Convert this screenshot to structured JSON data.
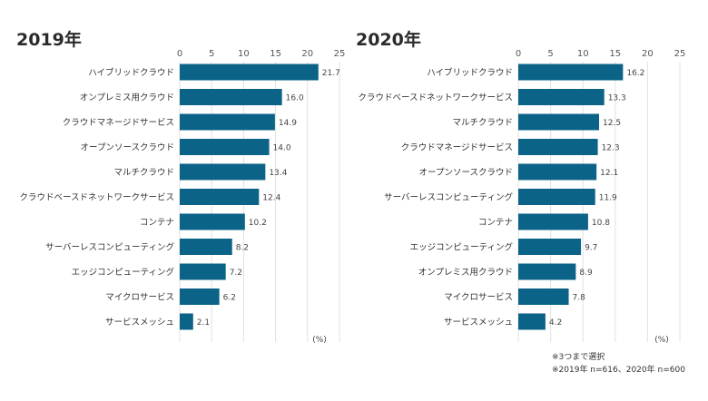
{
  "chart_data": [
    {
      "type": "bar",
      "orientation": "horizontal",
      "title": "2019年",
      "categories": [
        "ハイブリッドクラウド",
        "オンプレミス用クラウド",
        "クラウドマネージドサービス",
        "オープンソースクラウド",
        "マルチクラウド",
        "クラウドベースドネットワークサービス",
        "コンテナ",
        "サーバーレスコンピューティング",
        "エッジコンピューティング",
        "マイクロサービス",
        "サービスメッシュ"
      ],
      "values": [
        21.7,
        16.0,
        14.9,
        14.0,
        13.4,
        12.4,
        10.2,
        8.2,
        7.2,
        6.2,
        2.1
      ],
      "value_labels": [
        "21.7",
        "16.0",
        "14.9",
        "14.0",
        "13.4",
        "12.4",
        "10.2",
        "8.2",
        "7.2",
        "6.2",
        "2.1"
      ],
      "xticks": [
        "0",
        "5",
        "10",
        "15",
        "20",
        "25"
      ],
      "xlim": [
        0,
        25
      ],
      "unit": "(%)",
      "bar_color": "#0b6388",
      "grid": true
    },
    {
      "type": "bar",
      "orientation": "horizontal",
      "title": "2020年",
      "categories": [
        "ハイブリッドクラウド",
        "クラウドベースドネットワークサービス",
        "マルチクラウド",
        "クラウドマネージドサービス",
        "オープンソースクラウド",
        "サーバーレスコンピューティング",
        "コンテナ",
        "エッジコンピューティング",
        "オンプレミス用クラウド",
        "マイクロサービス",
        "サービスメッシュ"
      ],
      "values": [
        16.2,
        13.3,
        12.5,
        12.3,
        12.1,
        11.9,
        10.8,
        9.7,
        8.9,
        7.8,
        4.2
      ],
      "value_labels": [
        "16.2",
        "13.3",
        "12.5",
        "12.3",
        "12.1",
        "11.9",
        "10.8",
        "9.7",
        "8.9",
        "7.8",
        "4.2"
      ],
      "xticks": [
        "0",
        "5",
        "10",
        "15",
        "20",
        "25"
      ],
      "xlim": [
        0,
        25
      ],
      "unit": "(%)",
      "bar_color": "#0b6388",
      "grid": true
    }
  ],
  "notes": {
    "line1": "※3つまで選択",
    "line2": "※2019年 n=616、2020年 n=600"
  }
}
